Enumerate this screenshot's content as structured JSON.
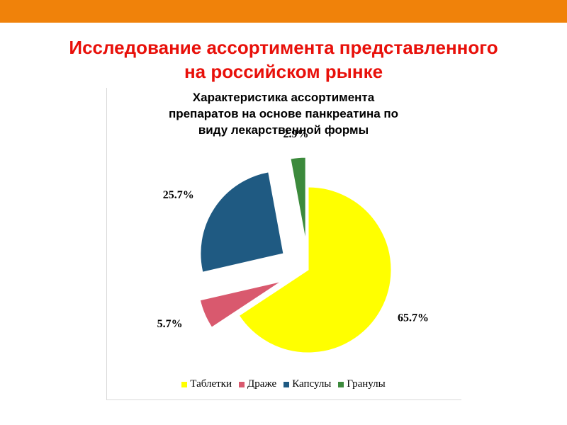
{
  "slide": {
    "title_line1": "Исследование ассортимента представленного",
    "title_line2": "на российском рынке",
    "title_color": "#e8100a",
    "top_bar_color": "#f0820a"
  },
  "chart_data": {
    "type": "pie",
    "title_lines": [
      "Характеристика ассортимента",
      "препаратов на основе панкреатина по",
      "виду лекарственной формы"
    ],
    "categories": [
      "Таблетки",
      "Драже",
      "Капсулы",
      "Гранулы"
    ],
    "values": [
      65.7,
      5.7,
      25.7,
      2.9
    ],
    "labels": [
      "65.7%",
      "5.7%",
      "25.7%",
      "2.9%"
    ],
    "colors": [
      "#ffff00",
      "#d9596e",
      "#1f5a82",
      "#3c8a3c"
    ],
    "exploded": true,
    "legend_position": "bottom"
  }
}
